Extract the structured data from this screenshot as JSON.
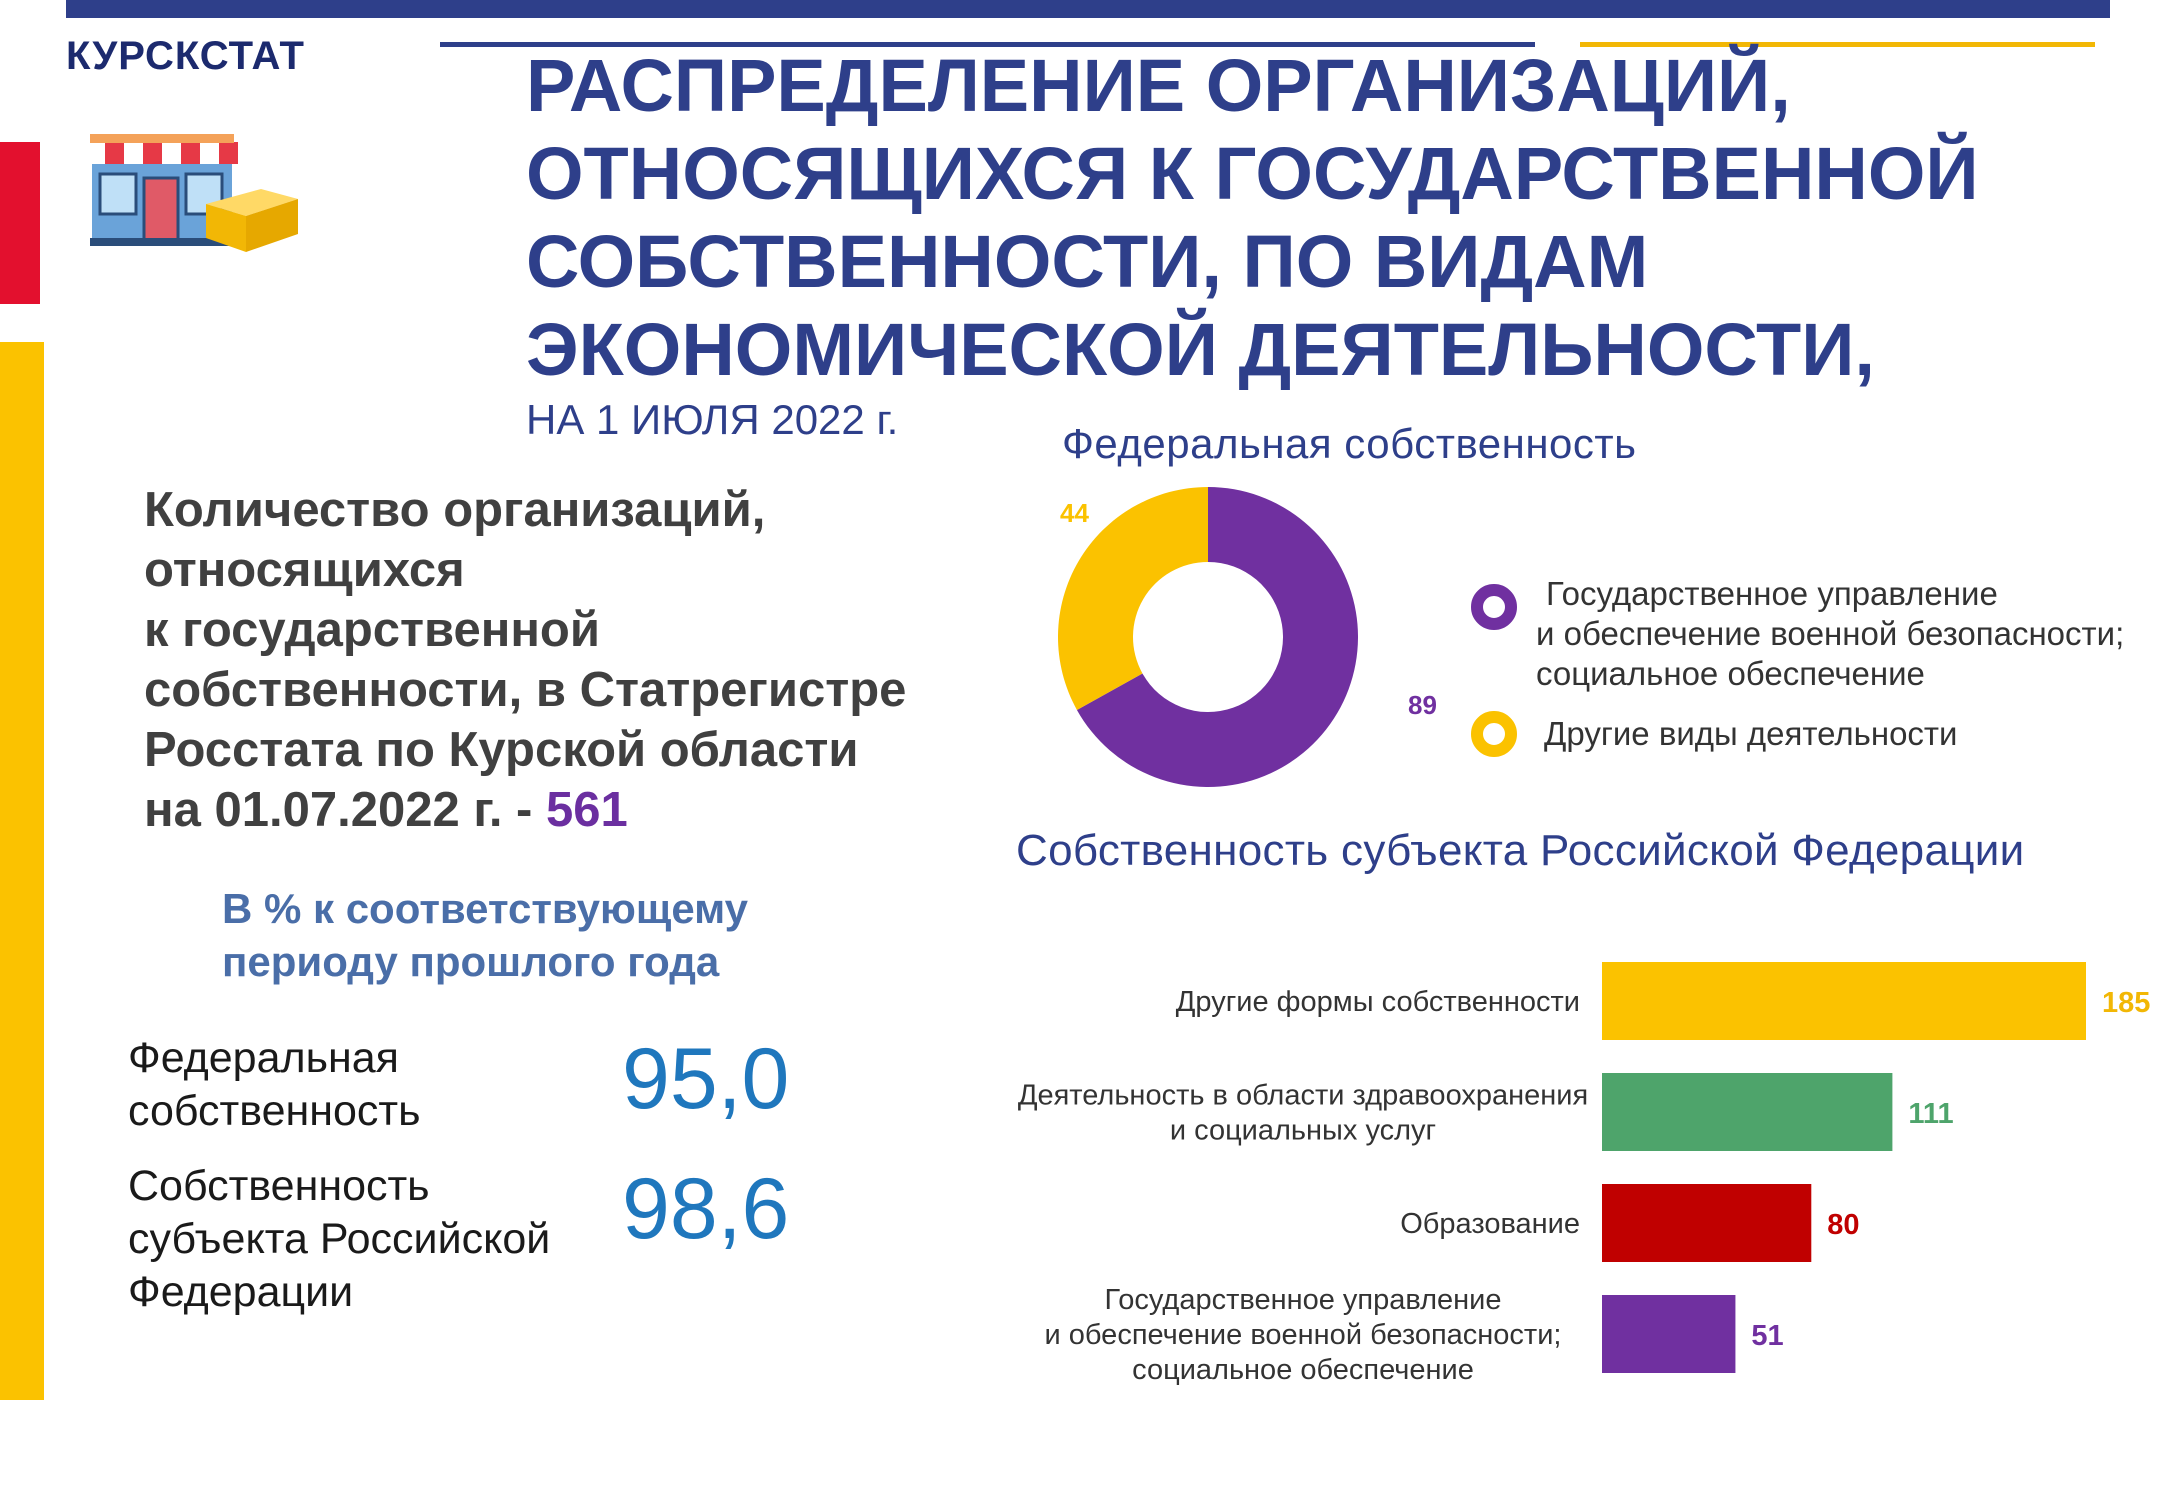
{
  "header": {
    "org_name": "КУРСКСТАТ",
    "title_lines": [
      "РАСПРЕДЕЛЕНИЕ ОРГАНИЗАЦИЙ,",
      "ОТНОСЯЩИХСЯ К ГОСУДАРСТВЕННОЙ",
      "СОБСТВЕННОСТИ, ПО ВИДАМ",
      "ЭКОНОМИЧЕСКОЙ ДЕЯТЕЛЬНОСТИ,"
    ],
    "subtitle": "НА 1 ИЮЛЯ 2022 г.",
    "icon": "shop-icon"
  },
  "count_block": {
    "lines": [
      "Количество организаций,",
      "относящихся",
      "к государственной",
      "собственности, в Статрегистре",
      "Росстата по Курской области"
    ],
    "last_line_prefix": "на 01.07.2022 г. - ",
    "value": "561"
  },
  "percent_block": {
    "heading_lines": [
      "В % к соответствующему",
      "периоду прошлого года"
    ],
    "rows": [
      {
        "label_lines": [
          "Федеральная",
          "собственность"
        ],
        "value": "95,0"
      },
      {
        "label_lines": [
          "Собственность",
          "субъекта Российской",
          "Федерации"
        ],
        "value": "98,6"
      }
    ]
  },
  "colors": {
    "purple": "#7030a0",
    "yellow": "#fbc200",
    "green": "#4ea46b",
    "red": "#c00000",
    "title_blue": "#2e3f8a",
    "value_blue": "#1f77bd"
  },
  "chart_data": [
    {
      "type": "pie",
      "variant": "donut",
      "title": "Федеральная собственность",
      "slices": [
        {
          "label": "Государственное управление\nи обеспечение военной безопасности;\nсоциальное обеспечение",
          "legend_lines": [
            "Государственное управление",
            "и обеспечение военной безопасности;",
            "социальное обеспечение"
          ],
          "value": 89,
          "color": "#7030a0"
        },
        {
          "label": "Другие виды деятельности",
          "legend_lines": [
            "Другие виды деятельности"
          ],
          "value": 44,
          "color": "#fbc200"
        }
      ],
      "legend_position": "right"
    },
    {
      "type": "bar",
      "orientation": "horizontal",
      "title": "Собственность субъекта Российской Федерации",
      "categories": [
        [
          "Другие формы собственности"
        ],
        [
          "Деятельность в области здравоохранения",
          "и социальных услуг"
        ],
        [
          "Образование"
        ],
        [
          "Государственное управление",
          "и обеспечение военной безопасности;",
          "социальное обеспечение"
        ]
      ],
      "values": [
        185,
        111,
        80,
        51
      ],
      "colors": [
        "#fbc200",
        "#4ea46b",
        "#c00000",
        "#7030a0"
      ],
      "label_colors": [
        "#f2b705",
        "#4ea46b",
        "#c00000",
        "#7030a0"
      ],
      "grid": false
    }
  ]
}
